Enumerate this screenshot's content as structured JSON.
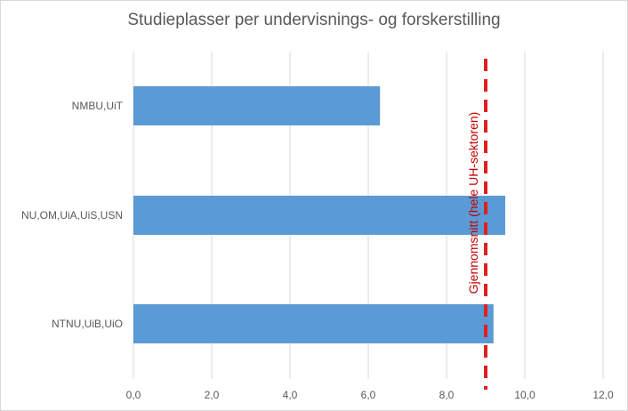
{
  "chart_data": {
    "type": "bar",
    "orientation": "horizontal",
    "title": "Studieplasser per undervisnings- og forskerstilling",
    "categories": [
      "NMBU,UiT",
      "NU,OM,UiA,UiS,USN",
      "NTNU,UiB,UiO"
    ],
    "values": [
      6.3,
      9.5,
      9.2
    ],
    "xlim": [
      0,
      12
    ],
    "x_ticks": [
      0,
      2,
      4,
      6,
      8,
      10,
      12
    ],
    "x_tick_labels": [
      "0,0",
      "2,0",
      "4,0",
      "6,0",
      "8,0",
      "10,0",
      "12,0"
    ],
    "grid": true,
    "bar_color": "#5b9bd5",
    "reference_line": {
      "value": 9.0,
      "label": "Gjennomsnitt (hele UH-sektoren)",
      "color": "#e02020",
      "style": "dashed"
    }
  }
}
